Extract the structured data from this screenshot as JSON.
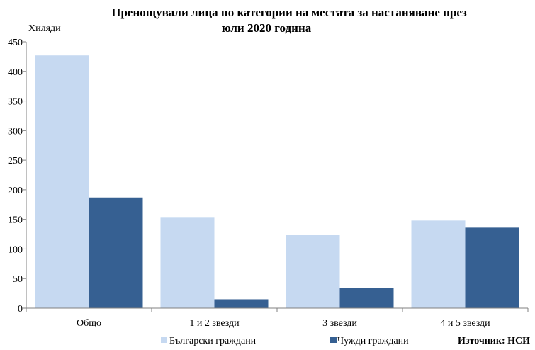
{
  "chart_data": {
    "type": "bar",
    "title_lines": [
      "Пренощували лица по категории на местата за настаняване през",
      "юли 2020 година"
    ],
    "ylabel": "Хиляди",
    "ylim": [
      0,
      450
    ],
    "yticks": [
      0,
      50,
      100,
      150,
      200,
      250,
      300,
      350,
      400,
      450
    ],
    "categories": [
      "Общо",
      "1 и 2 звезди",
      "3 звезди",
      "4 и 5 звезди"
    ],
    "series": [
      {
        "name": "Български граждани",
        "color": "#c6d9f1",
        "values": [
          427,
          154,
          124,
          148
        ]
      },
      {
        "name": "Чужди граждани",
        "color": "#366092",
        "values": [
          187,
          15,
          34,
          136
        ]
      }
    ],
    "grid": false,
    "legend_position": "bottom",
    "source": "Източник: НСИ"
  }
}
